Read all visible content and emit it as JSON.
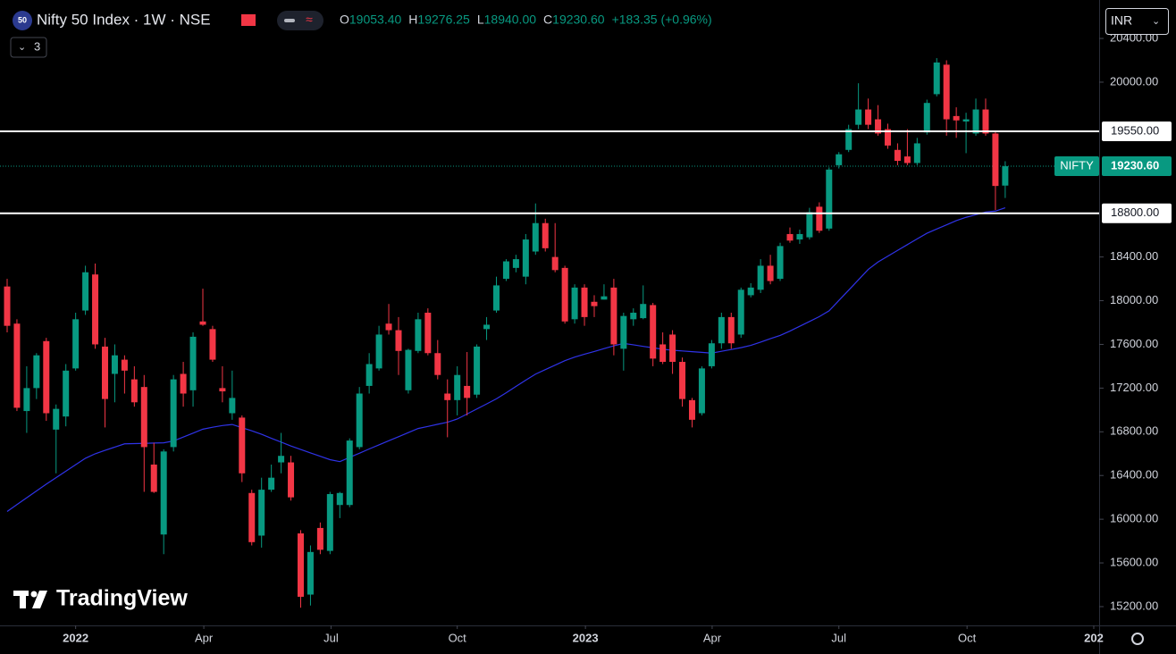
{
  "header": {
    "badge": "50",
    "symbol": "Nifty 50 Index · 1W · NSE",
    "ohlc": [
      {
        "key": "O",
        "value": "19053.40"
      },
      {
        "key": "H",
        "value": "19276.25"
      },
      {
        "key": "L",
        "value": "18940.00"
      },
      {
        "key": "C",
        "value": "19230.60"
      }
    ],
    "change": "+183.35 (+0.96%)",
    "indicators": "3",
    "currency": "INR"
  },
  "watermark": "TradingView",
  "chart_data": {
    "type": "candlestick",
    "up_color": "#089981",
    "down_color": "#f23645",
    "open": [
      18130,
      17790,
      16990,
      17200,
      17630,
      16820,
      16940,
      17380,
      17910,
      18240,
      17580,
      17330,
      17460,
      17280,
      17210,
      16500,
      15860,
      16660,
      17330,
      17180,
      17810,
      17740,
      17200,
      16970,
      16930,
      16240,
      15850,
      16270,
      16520,
      16520,
      15870,
      15310,
      15920,
      15710,
      16130,
      16130,
      16660,
      17220,
      17380,
      17790,
      17730,
      17180,
      17540,
      17890,
      17520,
      17150,
      17090,
      17220,
      17140,
      17740,
      17910,
      18200,
      18300,
      18220,
      18450,
      18710,
      18400,
      18300,
      17830,
      18120,
      17990,
      18010,
      18120,
      17560,
      17830,
      17840,
      17960,
      17600,
      17690,
      17440,
      17090,
      16970,
      17400,
      17610,
      17850,
      17690,
      18050,
      18100,
      18320,
      18200,
      18610,
      18560,
      18580,
      18860,
      18660,
      19240,
      19380,
      19610,
      19750,
      19660,
      19570,
      19380,
      19320,
      19260,
      19540,
      19890,
      20160,
      19690,
      19640,
      19530,
      19750,
      19530,
      19053.4
    ],
    "high": [
      18200,
      17830,
      17400,
      17520,
      17660,
      17050,
      17420,
      17890,
      18320,
      18340,
      17660,
      17600,
      17500,
      17400,
      17320,
      16700,
      16640,
      17320,
      17440,
      17710,
      18110,
      17770,
      17400,
      17360,
      16950,
      16270,
      16380,
      16500,
      16790,
      16580,
      15900,
      15760,
      15970,
      16250,
      16250,
      16740,
      17210,
      17520,
      17770,
      17970,
      17850,
      17560,
      17890,
      17930,
      17640,
      17280,
      17400,
      17530,
      17600,
      17850,
      18220,
      18380,
      18420,
      18610,
      18890,
      18750,
      18710,
      18320,
      18150,
      18150,
      18050,
      18150,
      18200,
      17890,
      17930,
      18140,
      17980,
      17710,
      17730,
      17480,
      17110,
      17400,
      17640,
      17890,
      17890,
      18120,
      18160,
      18380,
      18420,
      18530,
      18670,
      18650,
      18850,
      18900,
      19220,
      19360,
      19610,
      19990,
      19850,
      19790,
      19620,
      19440,
      19570,
      19490,
      19840,
      20220,
      20200,
      19770,
      19720,
      19850,
      19850,
      19550,
      19276.25
    ],
    "low": [
      17710,
      16990,
      16790,
      17100,
      16900,
      16420,
      16850,
      17360,
      17870,
      17560,
      16840,
      17070,
      17150,
      17030,
      16250,
      16240,
      15680,
      16620,
      17030,
      17030,
      17770,
      17440,
      17070,
      16910,
      16340,
      15760,
      15740,
      16250,
      16420,
      16170,
      15190,
      15210,
      15680,
      15680,
      16010,
      16110,
      16640,
      17150,
      17360,
      17690,
      17320,
      17150,
      17520,
      17500,
      17280,
      16750,
      16950,
      16950,
      17110,
      17640,
      17890,
      18180,
      18260,
      18150,
      18420,
      18450,
      18260,
      17790,
      17790,
      17770,
      17850,
      18010,
      17500,
      17360,
      17770,
      17830,
      17400,
      17420,
      17330,
      17030,
      16840,
      16950,
      17380,
      17560,
      17560,
      17660,
      18030,
      18070,
      18150,
      18180,
      18530,
      18520,
      18560,
      18620,
      18640,
      19210,
      19360,
      19570,
      19570,
      19510,
      19390,
      19240,
      19240,
      19240,
      19520,
      19870,
      19510,
      19490,
      19350,
      19510,
      19510,
      18830,
      18940
    ],
    "close": [
      17770,
      17020,
      17200,
      17500,
      16970,
      17010,
      17360,
      17830,
      18260,
      17600,
      17100,
      17500,
      17360,
      17070,
      16660,
      16250,
      16620,
      17280,
      17150,
      17670,
      17780,
      17460,
      17170,
      17110,
      16420,
      15790,
      16270,
      16380,
      16580,
      16200,
      15290,
      15700,
      15720,
      16230,
      16240,
      16720,
      17150,
      17420,
      17690,
      17730,
      17540,
      17550,
      17830,
      17520,
      17320,
      17090,
      17320,
      17110,
      17580,
      17780,
      18140,
      18360,
      18380,
      18560,
      18710,
      18480,
      18280,
      17810,
      18120,
      17850,
      17950,
      18040,
      17600,
      17860,
      17890,
      17970,
      17470,
      17440,
      17440,
      17100,
      16910,
      17380,
      17610,
      17850,
      17610,
      18100,
      18120,
      18320,
      18180,
      18500,
      18550,
      18610,
      18810,
      18640,
      19200,
      19340,
      19570,
      19750,
      19610,
      19530,
      19420,
      19280,
      19260,
      19440,
      19810,
      20180,
      19660,
      19650,
      19660,
      19750,
      19530,
      19050,
      19230.6
    ],
    "ma": {
      "color": "#2f33e8",
      "values": [
        16071,
        16134,
        16196,
        16259,
        16321,
        16380,
        16440,
        16499,
        16558,
        16599,
        16630,
        16660,
        16690,
        16692,
        16694,
        16697,
        16699,
        16716,
        16752,
        16788,
        16824,
        16842,
        16857,
        16867,
        16838,
        16809,
        16777,
        16741,
        16706,
        16670,
        16638,
        16607,
        16576,
        16545,
        16527,
        16566,
        16604,
        16643,
        16680,
        16718,
        16755,
        16793,
        16830,
        16849,
        16869,
        16888,
        16917,
        16963,
        17009,
        17055,
        17102,
        17157,
        17215,
        17273,
        17328,
        17369,
        17410,
        17451,
        17484,
        17510,
        17535,
        17561,
        17587,
        17609,
        17596,
        17582,
        17569,
        17556,
        17546,
        17540,
        17533,
        17527,
        17520,
        17537,
        17553,
        17570,
        17591,
        17621,
        17652,
        17682,
        17722,
        17766,
        17810,
        17854,
        17907,
        18002,
        18096,
        18191,
        18286,
        18354,
        18407,
        18460,
        18513,
        18566,
        18617,
        18656,
        18694,
        18733,
        18763,
        18787,
        18811,
        18820,
        18850
      ]
    },
    "xlim": [
      -0.73,
      111.6
    ],
    "xticks": [
      {
        "value": 7,
        "label": "2022"
      },
      {
        "value": 20.1,
        "label": "Apr"
      },
      {
        "value": 33.1,
        "label": "Jul"
      },
      {
        "value": 46,
        "label": "Oct"
      },
      {
        "value": 59.1,
        "label": "2023"
      },
      {
        "value": 72.05,
        "label": "Apr"
      },
      {
        "value": 85,
        "label": "Jul"
      },
      {
        "value": 98.1,
        "label": "Oct"
      },
      {
        "value": 111.05,
        "label": "202"
      }
    ],
    "ylim": [
      15028,
      20752
    ],
    "yticks": [
      {
        "value": 15200,
        "label": "15200.00"
      },
      {
        "value": 15600,
        "label": "15600.00"
      },
      {
        "value": 16000,
        "label": "16000.00"
      },
      {
        "value": 16400,
        "label": "16400.00"
      },
      {
        "value": 16800,
        "label": "16800.00"
      },
      {
        "value": 17200,
        "label": "17200.00"
      },
      {
        "value": 17600,
        "label": "17600.00"
      },
      {
        "value": 18000,
        "label": "18000.00"
      },
      {
        "value": 18400,
        "label": "18400.00"
      },
      {
        "value": 20000,
        "label": "20000.00"
      },
      {
        "value": 20400,
        "label": "20400.00"
      }
    ],
    "hlines": [
      {
        "value": 19550,
        "label": "19550.00",
        "color": "#ffffff"
      },
      {
        "value": 18800,
        "label": "18800.00",
        "color": "#ffffff"
      }
    ],
    "last_price": {
      "name": "NIFTY",
      "value": 19230.6,
      "label": "19230.60",
      "color": "#089981"
    }
  }
}
